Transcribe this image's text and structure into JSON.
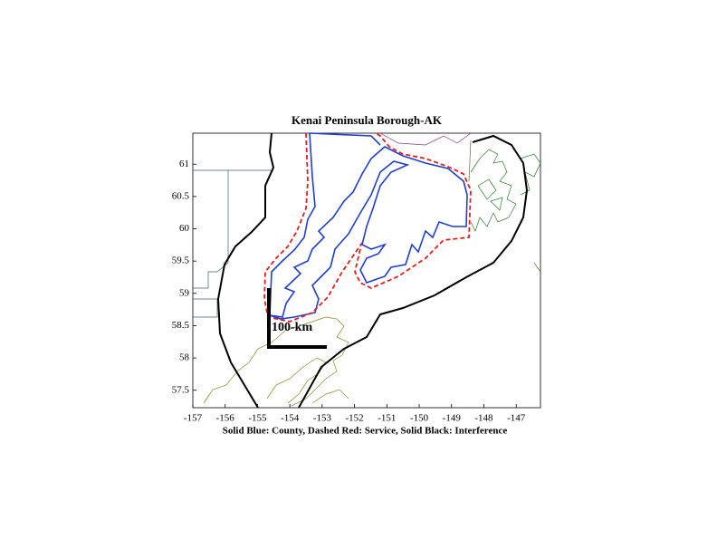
{
  "chart_data": {
    "type": "map",
    "title": "Kenai Peninsula Borough-AK",
    "xlabel": "Solid Blue: County, Dashed Red: Service, Solid Black: Interference",
    "annotation": "100-km",
    "xlim": [
      -157,
      -146.25
    ],
    "ylim": [
      57.23,
      61.48
    ],
    "xticks": [
      -157,
      -156,
      -155,
      -154,
      -153,
      -152,
      -151,
      -150,
      -149,
      -148,
      -147
    ],
    "yticks": [
      57.5,
      58,
      58.5,
      59,
      59.5,
      60,
      60.5,
      61
    ]
  }
}
